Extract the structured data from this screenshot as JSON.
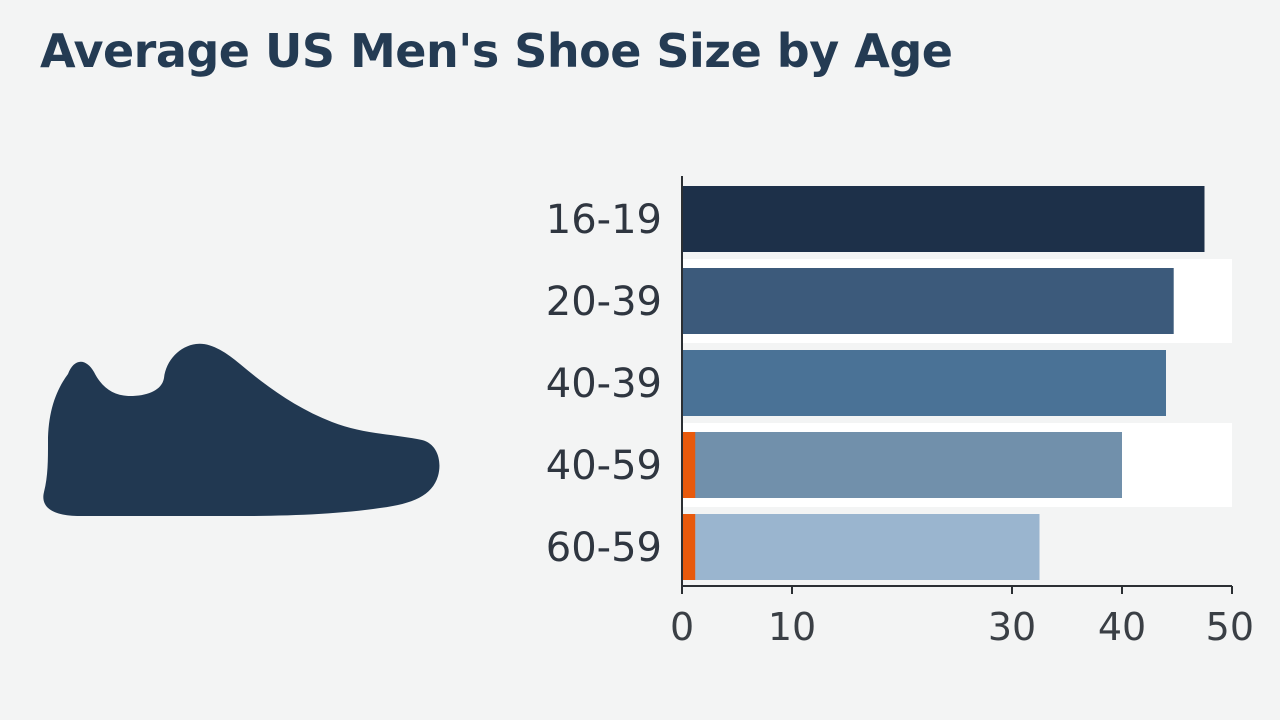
{
  "chart_data": {
    "type": "bar",
    "orientation": "horizontal",
    "title": "Average US Men's Shoe Size by Age",
    "xlabel": "",
    "ylabel": "",
    "categories": [
      "16-19",
      "20-39",
      "40-39",
      "40-59",
      "60-59"
    ],
    "values": [
      47.5,
      44.7,
      44.0,
      40.0,
      32.5
    ],
    "xlim": [
      0,
      50
    ],
    "x_ticks": [
      "0",
      "10",
      "30",
      "40",
      "50"
    ],
    "x_tick_values": [
      0,
      10,
      30,
      40,
      50
    ],
    "bar_colors": [
      "#1d3049",
      "#3c5a7b",
      "#4a7296",
      "#7190ab",
      "#9ab5cf"
    ],
    "highlight_color": "#e8590c",
    "highlight_value": 1.2,
    "highlighted_categories": [
      "40-59",
      "60-59"
    ],
    "background_bands": [
      "20-39",
      "40-59"
    ],
    "grid": false
  },
  "illustration": {
    "icon": "sneaker-silhouette-icon",
    "color": "#213851"
  }
}
